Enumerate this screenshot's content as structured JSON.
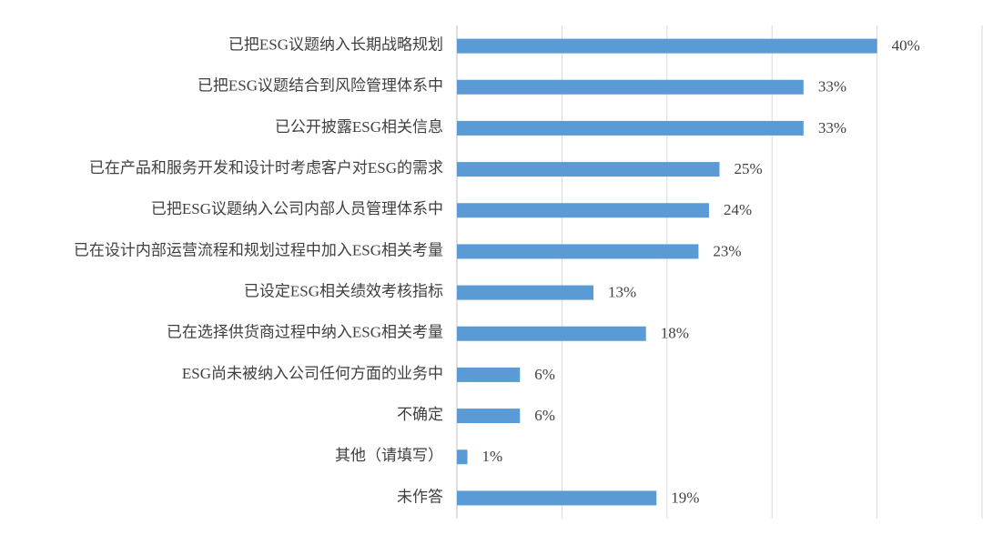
{
  "chart_data": {
    "type": "hbar",
    "categories": [
      "已把ESG议题纳入长期战略规划",
      "已把ESG议题结合到风险管理体系中",
      "已公开披露ESG相关信息",
      "已在产品和服务开发和设计时考虑客户对ESG的需求",
      "已把ESG议题纳入公司内部人员管理体系中",
      "已在设计内部运营流程和规划过程中加入ESG相关考量",
      "已设定ESG相关绩效考核指标",
      "已在选择供货商过程中纳入ESG相关考量",
      "ESG尚未被纳入公司任何方面的业务中",
      "不确定",
      "其他（请填写）",
      "未作答"
    ],
    "values": [
      40,
      33,
      33,
      25,
      24,
      23,
      13,
      18,
      6,
      6,
      1,
      19
    ],
    "value_labels": [
      "40%",
      "33%",
      "33%",
      "25%",
      "24%",
      "23%",
      "13%",
      "18%",
      "6%",
      "6%",
      "1%",
      "19%"
    ],
    "color": "#5b9bd5",
    "xlim": [
      0,
      50
    ],
    "xticks": [
      0,
      10,
      20,
      30,
      40,
      50
    ],
    "grid": true
  }
}
